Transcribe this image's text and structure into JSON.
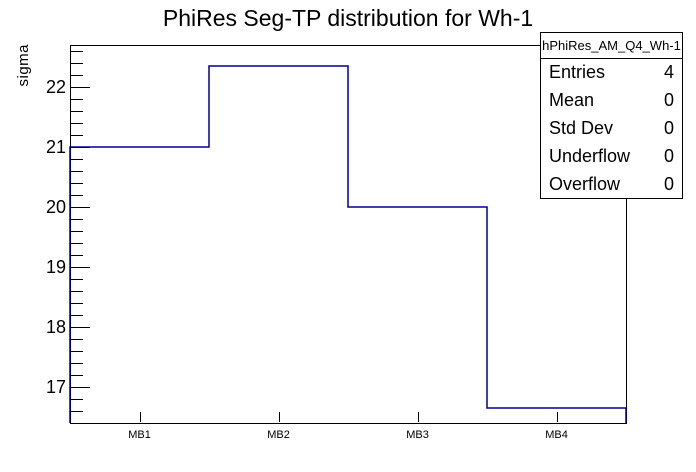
{
  "chart_data": {
    "type": "step-histogram",
    "title": "PhiRes Seg-TP distribution for Wh-1",
    "xlabel": "",
    "ylabel": "sigma",
    "categories": [
      "MB1",
      "MB2",
      "MB3",
      "MB4"
    ],
    "values": [
      21.0,
      22.35,
      20.0,
      16.65
    ],
    "ylim": [
      16.4,
      22.7
    ],
    "yticks": [
      17,
      18,
      19,
      20,
      21,
      22
    ],
    "y_minor_step": 0.2,
    "grid": false,
    "legend_position": "none",
    "line_color": "#00008b",
    "axis_color": "#000000",
    "background_color": "#ffffff"
  },
  "stats_box": {
    "header": "hPhiRes_AM_Q4_Wh-1",
    "rows": [
      {
        "label": "Entries",
        "value": "4"
      },
      {
        "label": "Mean",
        "value": "0"
      },
      {
        "label": "Std Dev",
        "value": "0"
      },
      {
        "label": "Underflow",
        "value": "0"
      },
      {
        "label": "Overflow",
        "value": "0"
      }
    ]
  }
}
